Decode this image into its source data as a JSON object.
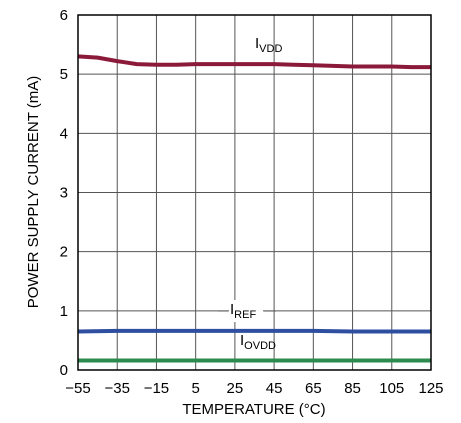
{
  "chart_data": {
    "type": "line",
    "xlabel": "TEMPERATURE (°C)",
    "ylabel": "POWER SUPPLY CURRENT (mA)",
    "xlim": [
      -55,
      125
    ],
    "ylim": [
      0,
      6
    ],
    "xticks": [
      -55,
      -35,
      -15,
      5,
      25,
      45,
      65,
      85,
      105,
      125
    ],
    "yticks": [
      0,
      1,
      2,
      3,
      4,
      5,
      6
    ],
    "grid": true,
    "series": [
      {
        "name": "IVDD",
        "label_main": "I",
        "label_sub": "VDD",
        "color": "#8b1a3a",
        "x": [
          -55,
          -45,
          -35,
          -25,
          -15,
          -5,
          5,
          15,
          25,
          35,
          45,
          55,
          65,
          75,
          85,
          95,
          105,
          115,
          125
        ],
        "y": [
          5.3,
          5.28,
          5.22,
          5.17,
          5.16,
          5.16,
          5.17,
          5.17,
          5.17,
          5.17,
          5.17,
          5.16,
          5.15,
          5.14,
          5.13,
          5.13,
          5.13,
          5.12,
          5.12
        ]
      },
      {
        "name": "IREF",
        "label_main": "I",
        "label_sub": "REF",
        "color": "#2e4fa0",
        "x": [
          -55,
          -35,
          -15,
          5,
          25,
          45,
          65,
          85,
          105,
          125
        ],
        "y": [
          0.65,
          0.66,
          0.66,
          0.66,
          0.66,
          0.66,
          0.66,
          0.65,
          0.65,
          0.65
        ]
      },
      {
        "name": "IOVDD",
        "label_main": "I",
        "label_sub": "OVDD",
        "color": "#2e8b4f",
        "x": [
          -55,
          -35,
          -15,
          5,
          25,
          45,
          65,
          85,
          105,
          125
        ],
        "y": [
          0.16,
          0.16,
          0.16,
          0.16,
          0.16,
          0.16,
          0.16,
          0.16,
          0.16,
          0.16
        ]
      }
    ]
  }
}
